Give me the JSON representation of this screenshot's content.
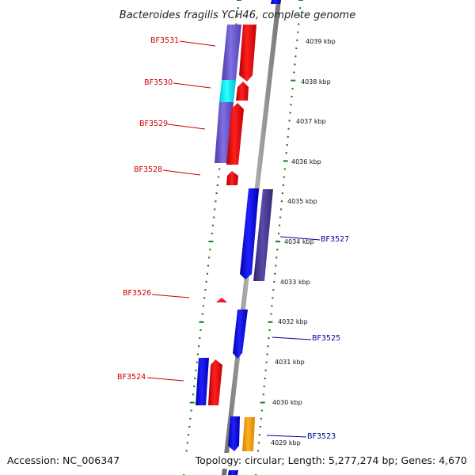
{
  "title": "Bacteroides fragilis YCH46, complete genome",
  "footer": {
    "accession": "Accession: NC_006347",
    "summary": "Topology: circular; Length: 5,277,274 bp; Genes: 4,670"
  },
  "colors": {
    "backbone": "#888888",
    "tick": "#1a7a1a",
    "forward_gene": "#ff0000",
    "reverse_gene": "#0000ff",
    "label_forward": "#cc0000",
    "label_reverse": "#000099",
    "cds_purple": "#6a5acd",
    "cds_cyan": "#00ffff",
    "cds_darkpurple": "#483d8b",
    "cds_orange": "#ffa500"
  },
  "scale_labels": [
    "4039 kbp",
    "4038 kbp",
    "4037 kbp",
    "4036 kbp",
    "4035 kbp",
    "4034 kbp",
    "4033 kbp",
    "4032 kbp",
    "4031 kbp",
    "4030 kbp",
    "4029 kbp"
  ],
  "genes_forward": [
    "BF3531",
    "BF3530",
    "BF3529",
    "BF3528",
    "BF3526",
    "BF3524"
  ],
  "genes_reverse": [
    "BF3527",
    "BF3525",
    "BF3523"
  ]
}
